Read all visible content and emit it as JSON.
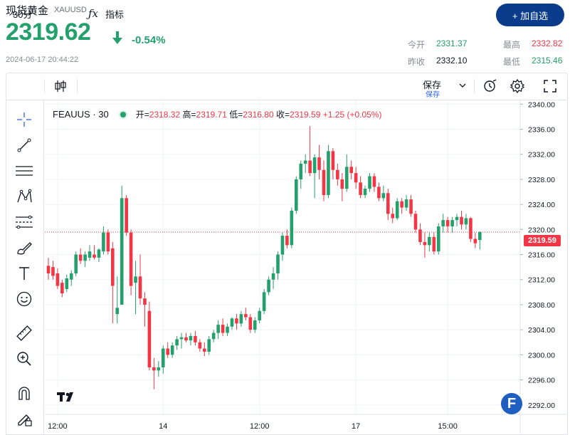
{
  "header": {
    "title": "现货黄金",
    "symbol": "XAUUSD",
    "add_button": "+ 加自选",
    "price": "2319.62",
    "change_pct": "-0.54%",
    "timestamp": "2024-06-17 20:44:22",
    "stats": {
      "open_label": "今开",
      "open_value": "2331.37",
      "high_label": "最高",
      "high_value": "2332.82",
      "prev_label": "昨收",
      "prev_value": "2332.10",
      "low_label": "最低",
      "low_value": "2315.46"
    },
    "colors": {
      "up": "#23a06b",
      "down": "#f23645",
      "brand": "#0b3c8c"
    }
  },
  "toolbar": {
    "interval": "30分",
    "indicators": "指标",
    "save": "保存",
    "save_sub": "保存",
    "icons": [
      "candles-icon",
      "fx-icon",
      "chevron-down-icon",
      "alert-icon",
      "gear-icon",
      "fullscreen-icon"
    ]
  },
  "legend": {
    "symbol": "FEAUUS · 30",
    "open_label": "开=",
    "open": "2318.32",
    "high_label": "高=",
    "high": "2319.71",
    "low_label": "低=",
    "low": "2316.80",
    "close_label": "收=",
    "close": "2319.59",
    "change": "+1.25 (+0.05%)"
  },
  "sidebar_tools": [
    "crosshair-icon",
    "trendline-icon",
    "horizontal-lines-icon",
    "pattern-icon",
    "fib-icon",
    "brush-icon",
    "text-icon",
    "emoji-icon",
    "ruler-icon",
    "zoom-in-icon",
    "magnet-icon",
    "lock-pencil-icon"
  ],
  "chart_data": {
    "type": "candlestick",
    "y_ticks": [
      "2340.00",
      "2336.00",
      "2332.00",
      "2328.00",
      "2324.00",
      "2320.00",
      "2316.00",
      "2312.00",
      "2308.00",
      "2304.00",
      "2300.00",
      "2296.00",
      "2292.00"
    ],
    "ylim": [
      2290.5,
      2340.6
    ],
    "x_ticks": [
      {
        "label": "12:00",
        "index": 2
      },
      {
        "label": "14",
        "index": 25
      },
      {
        "label": "12:00",
        "index": 46
      },
      {
        "label": "17",
        "index": 67
      },
      {
        "label": "15:00",
        "index": 87
      }
    ],
    "current_price": "2319.59",
    "candles": [
      [
        2314.2,
        2315.5,
        2312.0,
        2313.0
      ],
      [
        2314.0,
        2315.0,
        2312.0,
        2312.6
      ],
      [
        2313.0,
        2313.8,
        2310.5,
        2311.0
      ],
      [
        2311.5,
        2312.0,
        2309.2,
        2309.8
      ],
      [
        2310.5,
        2312.8,
        2310.0,
        2312.2
      ],
      [
        2312.0,
        2313.5,
        2311.0,
        2313.0
      ],
      [
        2313.0,
        2316.5,
        2312.5,
        2316.0
      ],
      [
        2316.0,
        2317.0,
        2314.5,
        2315.0
      ],
      [
        2315.0,
        2316.5,
        2314.0,
        2316.0
      ],
      [
        2315.5,
        2317.5,
        2315.0,
        2316.5
      ],
      [
        2316.0,
        2317.5,
        2315.2,
        2315.5
      ],
      [
        2315.5,
        2317.0,
        2314.8,
        2316.8
      ],
      [
        2316.5,
        2320.5,
        2316.0,
        2319.5
      ],
      [
        2319.5,
        2320.0,
        2316.0,
        2316.5
      ],
      [
        2317.0,
        2318.0,
        2305.0,
        2311.0
      ],
      [
        2306.5,
        2312.5,
        2305.0,
        2307.5
      ],
      [
        2308.0,
        2327.0,
        2308.0,
        2325.0
      ],
      [
        2325.0,
        2325.5,
        2319.0,
        2319.5
      ],
      [
        2319.5,
        2320.0,
        2309.5,
        2311.0
      ],
      [
        2311.5,
        2315.0,
        2306.5,
        2312.5
      ],
      [
        2312.5,
        2316.0,
        2308.0,
        2309.0
      ],
      [
        2309.0,
        2310.0,
        2304.5,
        2308.0
      ],
      [
        2307.0,
        2308.5,
        2297.5,
        2298.0
      ],
      [
        2298.0,
        2299.5,
        2294.5,
        2297.5
      ],
      [
        2297.5,
        2299.0,
        2296.5,
        2298.0
      ],
      [
        2298.0,
        2301.5,
        2297.0,
        2301.0
      ],
      [
        2301.0,
        2302.0,
        2299.5,
        2300.0
      ],
      [
        2300.0,
        2302.0,
        2299.5,
        2301.5
      ],
      [
        2301.5,
        2303.0,
        2300.8,
        2302.5
      ],
      [
        2302.5,
        2303.5,
        2301.0,
        2302.8
      ],
      [
        2302.8,
        2303.5,
        2302.0,
        2302.3
      ],
      [
        2302.3,
        2303.5,
        2301.5,
        2303.0
      ],
      [
        2303.0,
        2303.8,
        2301.5,
        2302.0
      ],
      [
        2302.0,
        2302.5,
        2300.5,
        2301.0
      ],
      [
        2301.0,
        2302.0,
        2299.8,
        2300.5
      ],
      [
        2300.5,
        2303.0,
        2300.0,
        2302.5
      ],
      [
        2302.5,
        2304.0,
        2302.0,
        2303.5
      ],
      [
        2303.5,
        2305.5,
        2302.5,
        2304.8
      ],
      [
        2304.8,
        2305.8,
        2303.0,
        2303.5
      ],
      [
        2303.5,
        2305.0,
        2303.0,
        2304.5
      ],
      [
        2304.5,
        2306.0,
        2304.0,
        2305.8
      ],
      [
        2305.8,
        2306.5,
        2304.0,
        2305.0
      ],
      [
        2305.0,
        2307.0,
        2304.5,
        2306.5
      ],
      [
        2306.5,
        2307.5,
        2305.5,
        2306.0
      ],
      [
        2306.0,
        2306.5,
        2303.5,
        2304.0
      ],
      [
        2304.0,
        2306.0,
        2303.5,
        2305.5
      ],
      [
        2305.5,
        2307.5,
        2305.0,
        2307.0
      ],
      [
        2307.0,
        2310.5,
        2306.5,
        2310.0
      ],
      [
        2310.0,
        2312.5,
        2309.5,
        2312.0
      ],
      [
        2312.0,
        2314.0,
        2310.5,
        2313.0
      ],
      [
        2313.0,
        2316.5,
        2312.0,
        2316.0
      ],
      [
        2316.0,
        2319.5,
        2315.0,
        2319.0
      ],
      [
        2319.0,
        2320.0,
        2317.0,
        2317.5
      ],
      [
        2317.5,
        2323.5,
        2317.0,
        2323.0
      ],
      [
        2323.0,
        2328.5,
        2322.5,
        2328.0
      ],
      [
        2328.0,
        2331.0,
        2326.5,
        2330.5
      ],
      [
        2330.5,
        2332.0,
        2329.0,
        2331.0
      ],
      [
        2331.0,
        2336.5,
        2328.5,
        2329.0
      ],
      [
        2329.0,
        2332.0,
        2325.0,
        2331.5
      ],
      [
        2331.5,
        2333.5,
        2328.0,
        2329.5
      ],
      [
        2329.5,
        2331.0,
        2324.5,
        2325.5
      ],
      [
        2325.5,
        2333.5,
        2325.0,
        2332.5
      ],
      [
        2332.5,
        2333.0,
        2328.0,
        2329.5
      ],
      [
        2329.5,
        2330.5,
        2327.0,
        2328.0
      ],
      [
        2328.0,
        2329.0,
        2324.5,
        2326.5
      ],
      [
        2326.5,
        2332.0,
        2326.0,
        2330.0
      ],
      [
        2330.0,
        2331.0,
        2328.0,
        2329.0
      ],
      [
        2329.0,
        2330.0,
        2326.5,
        2327.5
      ],
      [
        2327.5,
        2328.5,
        2325.0,
        2325.5
      ],
      [
        2325.5,
        2327.0,
        2325.0,
        2326.5
      ],
      [
        2326.5,
        2329.0,
        2326.0,
        2328.5
      ],
      [
        2328.5,
        2329.0,
        2326.0,
        2326.8
      ],
      [
        2326.8,
        2327.5,
        2324.5,
        2325.0
      ],
      [
        2325.0,
        2327.0,
        2324.5,
        2325.8
      ],
      [
        2325.8,
        2326.5,
        2321.5,
        2322.5
      ],
      [
        2322.5,
        2323.5,
        2321.0,
        2321.8
      ],
      [
        2321.8,
        2325.0,
        2321.5,
        2324.5
      ],
      [
        2324.5,
        2325.0,
        2322.5,
        2323.5
      ],
      [
        2323.5,
        2325.5,
        2323.0,
        2324.8
      ],
      [
        2324.8,
        2325.5,
        2322.0,
        2322.5
      ],
      [
        2322.5,
        2323.0,
        2319.5,
        2320.0
      ],
      [
        2320.0,
        2321.0,
        2317.5,
        2318.0
      ],
      [
        2318.0,
        2319.5,
        2315.5,
        2317.5
      ],
      [
        2317.5,
        2319.5,
        2316.5,
        2318.8
      ],
      [
        2318.8,
        2319.5,
        2316.0,
        2316.5
      ],
      [
        2316.5,
        2321.0,
        2316.0,
        2320.5
      ],
      [
        2320.5,
        2322.5,
        2319.5,
        2321.5
      ],
      [
        2321.5,
        2322.0,
        2319.5,
        2320.5
      ],
      [
        2320.5,
        2322.0,
        2319.5,
        2321.5
      ],
      [
        2321.5,
        2322.5,
        2320.5,
        2322.0
      ],
      [
        2322.0,
        2323.0,
        2320.0,
        2320.8
      ],
      [
        2320.8,
        2322.5,
        2320.0,
        2321.8
      ],
      [
        2321.8,
        2322.0,
        2318.0,
        2318.5
      ],
      [
        2318.5,
        2319.5,
        2317.0,
        2317.8
      ],
      [
        2318.32,
        2319.71,
        2316.8,
        2319.59
      ]
    ]
  }
}
